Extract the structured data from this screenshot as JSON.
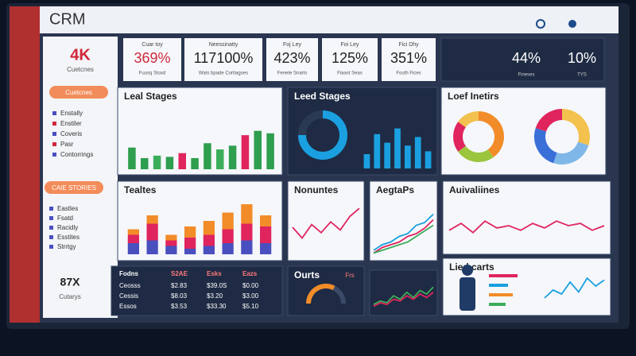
{
  "header": {
    "title": "CRM"
  },
  "sidebar": {
    "stat": "4K",
    "stat_label": "Cuetcnes",
    "button1": "Cuetcnes",
    "list1": [
      "Enstally",
      "Enstiler",
      "Coveris",
      "Pasr",
      "Contorrings"
    ],
    "button2": "CAIE STORIES",
    "list2": [
      "Eastles",
      "Fsatd",
      "Racidly",
      "Esstites",
      "Strrtgy"
    ],
    "footer_value": "87X",
    "footer_label": "Cutarys"
  },
  "kpis": [
    {
      "label": "Cuar toy",
      "value": "369%",
      "sub": "Fuusq Stoxd"
    },
    {
      "label": "Neessinatty",
      "value": "117100%",
      "sub": "Wats bpade Cortiagses"
    },
    {
      "label": "Foj Ley",
      "value": "423%",
      "sub": "Fenete Snarts"
    },
    {
      "label": "Foi Ley",
      "value": "125%",
      "sub": "Fiaast Seas"
    },
    {
      "label": "Fici Dhy",
      "value": "351%",
      "sub": "Fouth Fices"
    }
  ],
  "summary": {
    "value1": "44%",
    "value2": "10%",
    "sub1": "Fineses",
    "sub2": "TYS"
  },
  "lead_stages": {
    "title": "Leal Stages",
    "values": [
      35,
      18,
      22,
      20,
      26,
      18,
      42,
      32,
      38,
      55,
      62,
      58
    ],
    "colors": [
      "#2e9e4f",
      "#2e9e4f",
      "#3cae5a",
      "#2e9e4f",
      "#e0245e",
      "#2e9e4f",
      "#2e9e4f",
      "#3cae5a",
      "#2e9e4f",
      "#e0245e",
      "#2e9e4f",
      "#2e9e4f"
    ],
    "ylim": [
      0,
      100
    ]
  },
  "lead_states": {
    "title": "Leed Stages",
    "donut": [
      75,
      25
    ],
    "donut_colors": [
      "#1aa0e0",
      "#2a3a55"
    ],
    "bars": [
      25,
      60,
      45,
      70,
      40,
      55,
      30
    ],
    "bar_color": "#1aa0e0",
    "ylim": [
      0,
      100
    ]
  },
  "lead_metrics": {
    "title": "Loef Inetirs",
    "donut1": [
      40,
      25,
      20,
      15
    ],
    "donut1_colors": [
      "#f28c28",
      "#9bc53d",
      "#e0245e",
      "#f2c14e"
    ],
    "donut2": [
      30,
      25,
      25,
      20
    ],
    "donut2_colors": [
      "#f2c14e",
      "#7fb8e8",
      "#3a6fd8",
      "#e0245e"
    ]
  },
  "totals": {
    "title": "Tealtes",
    "ylim": [
      0,
      100
    ],
    "series": [
      {
        "color": "#4a4fbf",
        "values": [
          20,
          25,
          15,
          10,
          15,
          20,
          25,
          20
        ]
      },
      {
        "color": "#e0245e",
        "values": [
          15,
          30,
          10,
          20,
          20,
          25,
          30,
          30
        ]
      },
      {
        "color": "#f28c28",
        "values": [
          10,
          15,
          10,
          20,
          25,
          30,
          35,
          20
        ]
      }
    ]
  },
  "volumes": {
    "title": "Nonuntes",
    "values": [
      50,
      30,
      55,
      40,
      60,
      45,
      70,
      85
    ],
    "color": "#e0245e",
    "ylim": [
      0,
      100
    ]
  },
  "agents": {
    "title": "AegtaPs",
    "ylim": [
      0,
      100
    ],
    "series": [
      {
        "color": "#1aa0e0",
        "values": [
          10,
          20,
          25,
          35,
          40,
          55,
          60,
          75
        ]
      },
      {
        "color": "#e0245e",
        "values": [
          5,
          15,
          20,
          25,
          35,
          40,
          50,
          65
        ]
      },
      {
        "color": "#3cae5a",
        "values": [
          5,
          10,
          15,
          20,
          25,
          35,
          45,
          55
        ]
      }
    ]
  },
  "activities": {
    "title": "Auivaliines",
    "values": [
      40,
      55,
      35,
      60,
      45,
      50,
      40,
      55,
      45,
      60,
      50,
      55,
      40,
      50
    ],
    "color": "#e0245e",
    "ylim": [
      0,
      100
    ]
  },
  "table": {
    "headers": [
      "Fodns",
      "S2AE",
      "Esks",
      "Eazs"
    ],
    "rows": [
      [
        "Ceosss",
        "$2.83",
        "$39.0S",
        "$0.00"
      ],
      [
        "Cessis",
        "$8.03",
        "$3.20",
        "$3.00"
      ],
      [
        "Essos",
        "$3.53",
        "$33.30",
        "$5.10"
      ]
    ]
  },
  "gauge": {
    "title": "Ourts",
    "label": "Frs",
    "value": 65,
    "ylim": [
      0,
      100
    ]
  },
  "mini": {
    "ylim": [
      0,
      100
    ],
    "series": [
      {
        "color": "#3cae5a",
        "values": [
          20,
          30,
          25,
          45,
          35,
          55,
          40,
          60,
          50,
          70
        ]
      },
      {
        "color": "#e0245e",
        "values": [
          15,
          25,
          20,
          35,
          30,
          45,
          35,
          50,
          40,
          55
        ]
      }
    ]
  },
  "people": {
    "title": "Lied carts",
    "legend": [
      60,
      40,
      50,
      35
    ],
    "legend_colors": [
      "#e0245e",
      "#1aa0e0",
      "#f28c28",
      "#3cae5a"
    ],
    "line": [
      30,
      50,
      40,
      70,
      45,
      80,
      60,
      75
    ],
    "line_color": "#1aa0e0",
    "ylim": [
      0,
      100
    ]
  }
}
